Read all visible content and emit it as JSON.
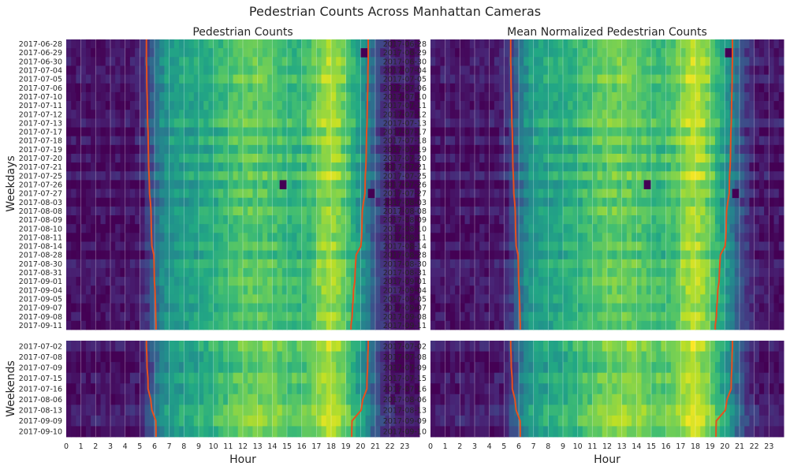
{
  "chart_data": {
    "type": "heatmap",
    "title": "Pedestrian Counts Across Manhattan Cameras",
    "colormap": "viridis",
    "curve_color": "#e8501d",
    "xlabel": "Hour",
    "x_ticks": [
      "0",
      "1",
      "2",
      "3",
      "4",
      "5",
      "6",
      "7",
      "8",
      "9",
      "10",
      "11",
      "12",
      "13",
      "14",
      "15",
      "16",
      "17",
      "18",
      "19",
      "20",
      "21",
      "22",
      "23"
    ],
    "row_groups": [
      {
        "label": "Weekdays",
        "dates": [
          "2017-06-28",
          "2017-06-29",
          "2017-06-30",
          "2017-07-04",
          "2017-07-05",
          "2017-07-06",
          "2017-07-10",
          "2017-07-11",
          "2017-07-12",
          "2017-07-13",
          "2017-07-17",
          "2017-07-18",
          "2017-07-19",
          "2017-07-20",
          "2017-07-21",
          "2017-07-25",
          "2017-07-26",
          "2017-07-27",
          "2017-08-03",
          "2017-08-08",
          "2017-08-09",
          "2017-08-10",
          "2017-08-11",
          "2017-08-14",
          "2017-08-28",
          "2017-08-30",
          "2017-08-31",
          "2017-09-01",
          "2017-09-04",
          "2017-09-05",
          "2017-09-07",
          "2017-09-08",
          "2017-09-11"
        ],
        "sunrise": [
          5.45,
          5.45,
          5.45,
          5.47,
          5.47,
          5.48,
          5.5,
          5.51,
          5.52,
          5.53,
          5.56,
          5.57,
          5.58,
          5.59,
          5.6,
          5.63,
          5.65,
          5.66,
          5.72,
          5.76,
          5.77,
          5.78,
          5.8,
          5.82,
          5.95,
          5.97,
          5.98,
          5.99,
          6.03,
          6.05,
          6.07,
          6.08,
          6.1
        ],
        "sunset": [
          20.52,
          20.52,
          20.52,
          20.5,
          20.5,
          20.49,
          20.47,
          20.46,
          20.45,
          20.44,
          20.41,
          20.4,
          20.39,
          20.38,
          20.36,
          20.32,
          20.31,
          20.3,
          20.2,
          20.12,
          20.1,
          20.09,
          20.07,
          20.02,
          19.7,
          19.66,
          19.63,
          19.61,
          19.52,
          19.5,
          19.45,
          19.43,
          19.35
        ],
        "anomalies": [
          {
            "date": "2017-06-29",
            "hour": 20.0,
            "level": "low"
          },
          {
            "date": "2017-07-06",
            "hour": 0.6,
            "level": "low"
          },
          {
            "date": "2017-07-26",
            "hour": 14.5,
            "level": "low"
          },
          {
            "date": "2017-07-27",
            "hour": 20.5,
            "level": "low"
          }
        ]
      },
      {
        "label": "Weekends",
        "dates": [
          "2017-07-02",
          "2017-07-08",
          "2017-07-09",
          "2017-07-15",
          "2017-07-16",
          "2017-08-06",
          "2017-08-13",
          "2017-09-09",
          "2017-09-10"
        ],
        "sunrise": [
          5.45,
          5.48,
          5.49,
          5.55,
          5.56,
          5.74,
          5.82,
          6.09,
          6.1
        ],
        "sunset": [
          20.52,
          20.49,
          20.48,
          20.44,
          20.43,
          20.15,
          20.04,
          19.42,
          19.4
        ],
        "anomalies": []
      }
    ],
    "panels": [
      {
        "title": "Pedestrian Counts"
      },
      {
        "title": "Mean Normalized Pedestrian Counts"
      }
    ],
    "grid": true,
    "legend": "none"
  }
}
